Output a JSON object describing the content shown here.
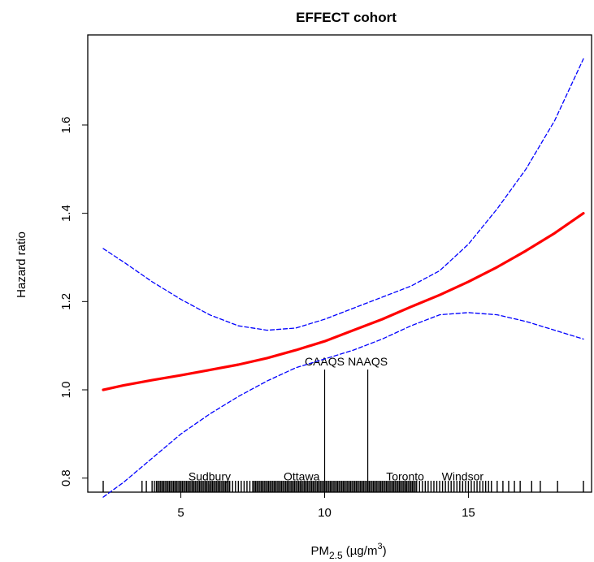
{
  "chart_data": {
    "type": "line",
    "title": "EFFECT cohort",
    "xlabel": {
      "base": "PM",
      "sub": "2.5",
      "unit_prefix": " (µg/m",
      "unit_sup": "3",
      "unit_suffix": ")"
    },
    "ylabel": "Hazard ratio",
    "xlim": [
      2.3,
      19
    ],
    "ylim": [
      0.77,
      1.76
    ],
    "x_ticks": [
      5,
      10,
      15
    ],
    "y_ticks": [
      0.8,
      1.0,
      1.2,
      1.4,
      1.6
    ],
    "grid": false,
    "series": [
      {
        "role": "estimate",
        "color": "#ff0000",
        "style": "solid",
        "x": [
          2.3,
          3,
          4,
          5,
          6,
          7,
          8,
          9,
          10,
          11,
          12,
          13,
          14,
          15,
          16,
          17,
          18,
          19
        ],
        "y": [
          1.0,
          1.01,
          1.022,
          1.033,
          1.045,
          1.057,
          1.072,
          1.09,
          1.11,
          1.135,
          1.16,
          1.188,
          1.215,
          1.245,
          1.278,
          1.315,
          1.355,
          1.4
        ]
      },
      {
        "role": "upper-ci",
        "color": "#0000ff",
        "style": "dashed",
        "x": [
          2.3,
          3,
          4,
          5,
          6,
          7,
          8,
          9,
          10,
          11,
          12,
          13,
          14,
          15,
          16,
          17,
          18,
          19
        ],
        "y": [
          1.32,
          1.29,
          1.245,
          1.205,
          1.17,
          1.145,
          1.135,
          1.14,
          1.16,
          1.185,
          1.21,
          1.235,
          1.27,
          1.33,
          1.41,
          1.5,
          1.61,
          1.75
        ]
      },
      {
        "role": "lower-ci",
        "color": "#0000ff",
        "style": "dashed",
        "x": [
          2.3,
          3,
          4,
          5,
          6,
          7,
          8,
          9,
          10,
          11,
          12,
          13,
          14,
          15,
          16,
          17,
          18,
          19
        ],
        "y": [
          0.757,
          0.79,
          0.845,
          0.9,
          0.945,
          0.985,
          1.02,
          1.05,
          1.07,
          1.09,
          1.115,
          1.145,
          1.17,
          1.175,
          1.17,
          1.155,
          1.135,
          1.115
        ]
      }
    ],
    "annotations": [
      {
        "label": "CAAQS",
        "x": 10,
        "line_top": 1.046
      },
      {
        "label": "NAAQS",
        "x": 11.5,
        "line_top": 1.046
      },
      {
        "label": "Sudbury",
        "x": 6,
        "line_top": 0.786
      },
      {
        "label": "Ottawa",
        "x": 9.2,
        "line_top": 0.786
      },
      {
        "label": "Toronto",
        "x": 12.8,
        "line_top": 0.786
      },
      {
        "label": "Windsor",
        "x": 14.8,
        "line_top": 0.786
      }
    ],
    "rug": {
      "x": [
        2.3,
        3.65,
        3.8,
        4.0,
        4.08,
        4.15,
        4.2,
        4.25,
        4.3,
        4.35,
        4.4,
        4.45,
        4.5,
        4.55,
        4.6,
        4.65,
        4.7,
        4.75,
        4.8,
        4.85,
        4.9,
        4.95,
        5.0,
        5.05,
        5.1,
        5.15,
        5.2,
        5.25,
        5.3,
        5.35,
        5.4,
        5.45,
        5.5,
        5.55,
        5.6,
        5.65,
        5.7,
        5.75,
        5.8,
        5.85,
        5.9,
        5.95,
        6.0,
        6.05,
        6.1,
        6.15,
        6.2,
        6.25,
        6.3,
        6.35,
        6.4,
        6.45,
        6.5,
        6.55,
        6.6,
        6.65,
        6.7,
        6.8,
        6.9,
        7.0,
        7.1,
        7.2,
        7.3,
        7.4,
        7.5,
        7.55,
        7.6,
        7.65,
        7.7,
        7.75,
        7.8,
        7.85,
        7.9,
        7.95,
        8.0,
        8.05,
        8.1,
        8.15,
        8.2,
        8.25,
        8.3,
        8.35,
        8.4,
        8.45,
        8.5,
        8.55,
        8.6,
        8.65,
        8.7,
        8.75,
        8.8,
        8.85,
        8.9,
        8.95,
        9.0,
        9.05,
        9.1,
        9.15,
        9.2,
        9.25,
        9.3,
        9.35,
        9.4,
        9.45,
        9.5,
        9.55,
        9.6,
        9.65,
        9.7,
        9.75,
        9.8,
        9.85,
        9.9,
        9.95,
        10.0,
        10.05,
        10.1,
        10.15,
        10.2,
        10.25,
        10.3,
        10.35,
        10.4,
        10.45,
        10.5,
        10.55,
        10.6,
        10.65,
        10.7,
        10.75,
        10.8,
        10.85,
        10.9,
        10.95,
        11.0,
        11.05,
        11.1,
        11.15,
        11.2,
        11.25,
        11.3,
        11.35,
        11.4,
        11.45,
        11.5,
        11.55,
        11.6,
        11.65,
        11.7,
        11.75,
        11.8,
        11.85,
        11.9,
        11.95,
        12.0,
        12.05,
        12.1,
        12.15,
        12.2,
        12.25,
        12.3,
        12.35,
        12.4,
        12.45,
        12.5,
        12.55,
        12.6,
        12.65,
        12.7,
        12.75,
        12.8,
        12.85,
        12.9,
        12.95,
        13.0,
        13.05,
        13.1,
        13.15,
        13.2,
        13.3,
        13.4,
        13.5,
        13.6,
        13.7,
        13.8,
        13.9,
        14.0,
        14.1,
        14.2,
        14.3,
        14.4,
        14.5,
        14.6,
        14.7,
        14.8,
        14.9,
        15.0,
        15.1,
        15.2,
        15.3,
        15.4,
        15.5,
        15.6,
        15.7,
        15.8,
        16.0,
        16.2,
        16.4,
        16.6,
        16.8,
        17.2,
        17.5,
        18.1,
        19.0
      ]
    }
  }
}
